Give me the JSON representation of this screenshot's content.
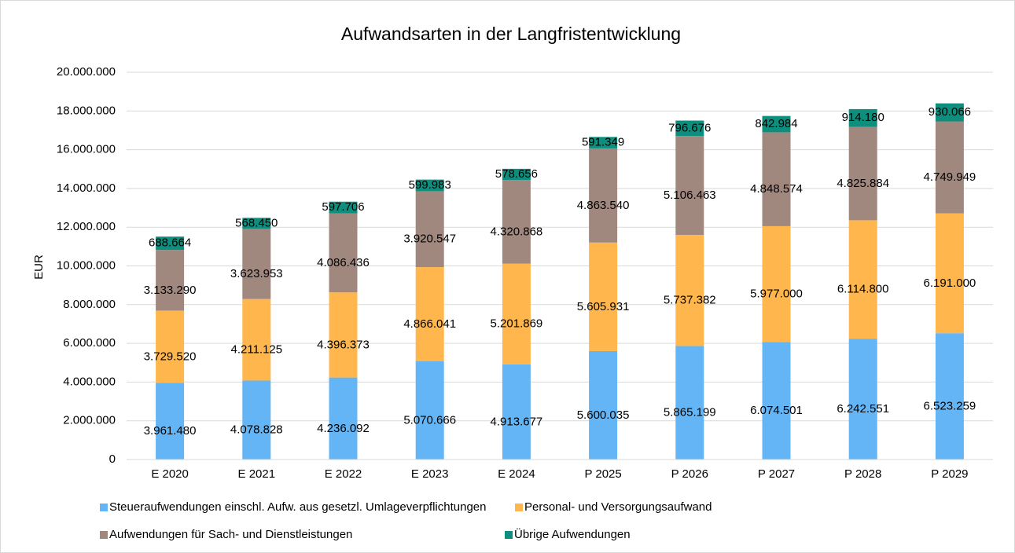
{
  "chart_data": {
    "type": "stacked_bar",
    "title": "Aufwandsarten in der Langfristentwicklung",
    "y_label": "EUR",
    "categories": [
      "E 2020",
      "E 2021",
      "E 2022",
      "E 2023",
      "E 2024",
      "P 2025",
      "P 2026",
      "P 2027",
      "P 2028",
      "P 2029"
    ],
    "series": [
      {
        "name": "Steueraufwendungen einschl. Aufw. aus gesetzl. Umlageverpflichtungen",
        "color": "#64b5f6",
        "values": [
          3961480,
          4078828,
          4236092,
          5070666,
          4913677,
          5600035,
          5865199,
          6074501,
          6242551,
          6523259
        ],
        "value_labels": [
          "3.961.480",
          "4.078.828",
          "4.236.092",
          "5.070.666",
          "4.913.677",
          "5.600.035",
          "5.865.199",
          "6.074.501",
          "6.242.551",
          "6.523.259"
        ]
      },
      {
        "name": "Personal- und Versorgungsaufwand",
        "color": "#ffb74d",
        "values": [
          3729520,
          4211125,
          4396373,
          4866041,
          5201869,
          5605931,
          5737382,
          5977000,
          6114800,
          6191000
        ],
        "value_labels": [
          "3.729.520",
          "4.211.125",
          "4.396.373",
          "4.866.041",
          "5.201.869",
          "5.605.931",
          "5.737.382",
          "5.977.000",
          "6.114.800",
          "6.191.000"
        ]
      },
      {
        "name": "Aufwendungen für Sach- und Dienstleistungen",
        "color": "#a1887f",
        "values": [
          3133290,
          3623953,
          4086436,
          3920547,
          4320868,
          4863540,
          5106463,
          4848574,
          4825884,
          4749949
        ],
        "value_labels": [
          "3.133.290",
          "3.623.953",
          "4.086.436",
          "3.920.547",
          "4.320.868",
          "4.863.540",
          "5.106.463",
          "4.848.574",
          "4.825.884",
          "4.749.949"
        ]
      },
      {
        "name": "Übrige Aufwendungen",
        "color": "#0e8f7e",
        "values": [
          688664,
          568450,
          597706,
          599983,
          578656,
          591349,
          796676,
          842984,
          914180,
          930066
        ],
        "value_labels": [
          "688.664",
          "568.450",
          "597.706",
          "599.983",
          "578.656",
          "591.349",
          "796.676",
          "842.984",
          "914.180",
          "930.066"
        ]
      }
    ],
    "ylim": [
      0,
      20000000
    ],
    "yticks": [
      0,
      {
        "value": 2000000,
        "label": "2.000.000"
      },
      {
        "value": 4000000,
        "label": "4.000.000"
      },
      {
        "value": 6000000,
        "label": "6.000.000"
      },
      {
        "value": 8000000,
        "label": "8.000.000"
      },
      {
        "value": 10000000,
        "label": "10.000.000"
      },
      {
        "value": 12000000,
        "label": "12.000.000"
      },
      {
        "value": 14000000,
        "label": "14.000.000"
      },
      {
        "value": 16000000,
        "label": "16.000.000"
      },
      {
        "value": 18000000,
        "label": "18.000.000"
      },
      {
        "value": 20000000,
        "label": "20.000.000"
      }
    ],
    "grid": true,
    "legend": "bottom"
  }
}
